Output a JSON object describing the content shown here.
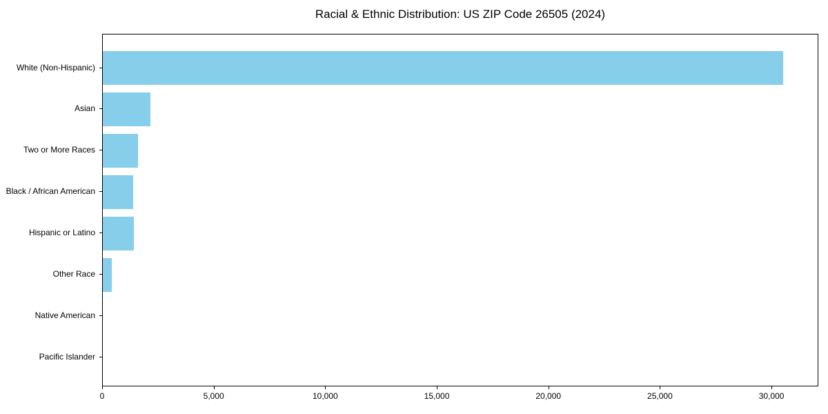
{
  "chart_data": {
    "type": "bar",
    "orientation": "horizontal",
    "title": "Racial & Ethnic Distribution: US ZIP Code 26505 (2024)",
    "categories": [
      "White (Non-Hispanic)",
      "Asian",
      "Two or More Races",
      "Black / African American",
      "Hispanic or Latino",
      "Other Race",
      "Native American",
      "Pacific Islander"
    ],
    "values": [
      30500,
      2120,
      1570,
      1360,
      1390,
      410,
      0,
      0
    ],
    "xlabel": "",
    "ylabel": "",
    "xlim": [
      0,
      32100
    ],
    "x_ticks": [
      0,
      5000,
      10000,
      15000,
      20000,
      25000,
      30000
    ],
    "x_tick_labels": [
      "0",
      "5,000",
      "10,000",
      "15,000",
      "20,000",
      "25,000",
      "30,000"
    ],
    "bar_color": "#87CEEB",
    "axis_color": "#000000",
    "text_color": "#000000",
    "grid": false,
    "legend": false
  }
}
